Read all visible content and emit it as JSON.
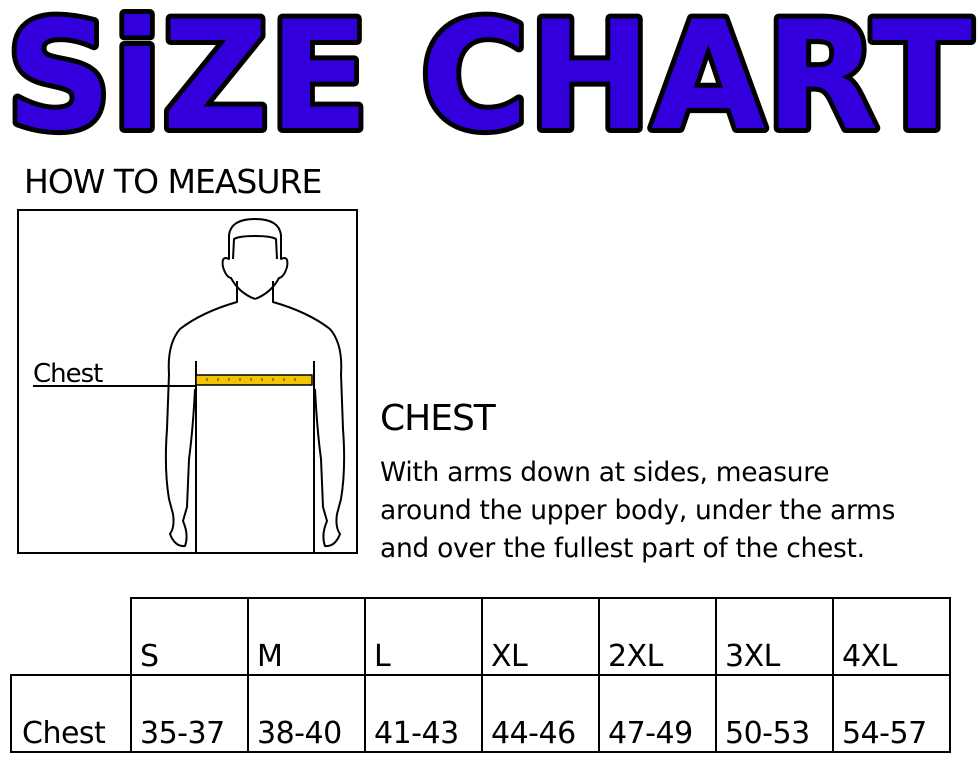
{
  "title": {
    "text": "SiZE CHART",
    "fill_color": "#3300dd",
    "outline_color": "#000000"
  },
  "how_to_measure": {
    "heading": "HOW TO MEASURE",
    "figure_label": "Chest",
    "tape_color": "#f5c400"
  },
  "instructions": {
    "heading": "CHEST",
    "lines": [
      "With arms down at sides, measure",
      "around the upper body, under the arms",
      "and over the fullest part of the chest."
    ]
  },
  "size_table": {
    "sizes": [
      "S",
      "M",
      "L",
      "XL",
      "2XL",
      "3XL",
      "4XL"
    ],
    "rows": [
      {
        "label": "Chest",
        "values": [
          "35-37",
          "38-40",
          "41-43",
          "44-46",
          "47-49",
          "50-53",
          "54-57"
        ]
      }
    ]
  }
}
